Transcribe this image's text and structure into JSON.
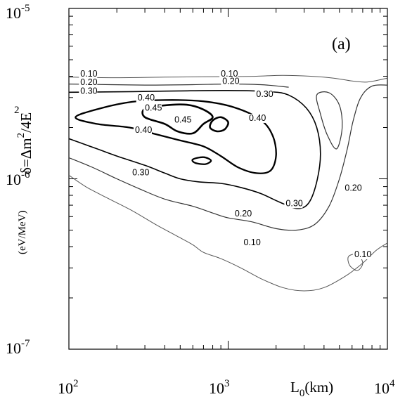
{
  "chart_data": {
    "type": "contour",
    "panel_label": "(a)",
    "xlabel": {
      "base": "L",
      "sub": "0",
      "rest": "(km)"
    },
    "ylabel": {
      "main": "δ=Δm",
      "sup": "2",
      "rest": "/4E",
      "unit": "(eV/MeV)",
      "unit_sup": "2"
    },
    "x_scale": "log",
    "y_scale": "log",
    "xlim": [
      100,
      10000
    ],
    "ylim": [
      1e-07,
      1e-05
    ],
    "x_ticks": [
      {
        "base": "10",
        "exp": "2"
      },
      {
        "base": "10",
        "exp": "3"
      },
      {
        "base": "10",
        "exp": "4"
      }
    ],
    "y_ticks": [
      {
        "base": "10",
        "exp": "-7"
      },
      {
        "base": "10",
        "exp": "-6"
      },
      {
        "base": "10",
        "exp": "-5"
      }
    ],
    "contour_levels": [
      "0.10",
      "0.20",
      "0.30",
      "0.40",
      "0.45"
    ],
    "contour_labels": [
      {
        "text": "0.10",
        "x": 118,
        "y": 3.98e-06
      },
      {
        "text": "0.20",
        "x": 118,
        "y": 3.55e-06
      },
      {
        "text": "0.30",
        "x": 118,
        "y": 3.16e-06
      },
      {
        "text": "0.10",
        "x": 900,
        "y": 3.98e-06
      },
      {
        "text": "0.20",
        "x": 920,
        "y": 3.6e-06
      },
      {
        "text": "0.30",
        "x": 1500,
        "y": 3.02e-06
      },
      {
        "text": "0.40",
        "x": 270,
        "y": 2.88e-06
      },
      {
        "text": "0.45",
        "x": 300,
        "y": 2.51e-06
      },
      {
        "text": "0.45",
        "x": 460,
        "y": 2.14e-06
      },
      {
        "text": "0.40",
        "x": 1350,
        "y": 2.19e-06
      },
      {
        "text": "0.40",
        "x": 260,
        "y": 1.86e-06
      },
      {
        "text": "0.30",
        "x": 250,
        "y": 1.05e-06
      },
      {
        "text": "0.30",
        "x": 2300,
        "y": 6.92e-07
      },
      {
        "text": "0.20",
        "x": 5400,
        "y": 8.5e-07
      },
      {
        "text": "0.20",
        "x": 1100,
        "y": 6.02e-07
      },
      {
        "text": "0.10",
        "x": 1250,
        "y": 4.07e-07
      },
      {
        "text": "0.10",
        "x": 6200,
        "y": 3.47e-07
      }
    ],
    "contours": [
      {
        "level": "0.10",
        "closed": false,
        "points": [
          [
            100,
            1.05e-06
          ],
          [
            130,
            8.9e-07
          ],
          [
            180,
            7.6e-07
          ],
          [
            250,
            6.5e-07
          ],
          [
            350,
            5.4e-07
          ],
          [
            480,
            4.6e-07
          ],
          [
            600,
            4.1e-07
          ],
          [
            700,
            3.7e-07
          ],
          [
            900,
            3.4e-07
          ],
          [
            1200,
            3e-07
          ],
          [
            1600,
            2.6e-07
          ],
          [
            2200,
            2.3e-07
          ],
          [
            3000,
            2.2e-07
          ],
          [
            4000,
            2.3e-07
          ],
          [
            5500,
            2.7e-07
          ],
          [
            7000,
            3.2e-07
          ],
          [
            8500,
            3.8e-07
          ],
          [
            10000,
            4.2e-07
          ]
        ]
      },
      {
        "level": "0.10",
        "closed": false,
        "points": [
          [
            100,
            3.95e-06
          ],
          [
            200,
            3.92e-06
          ],
          [
            400,
            3.95e-06
          ],
          [
            700,
            3.97e-06
          ],
          [
            1000,
            3.98e-06
          ],
          [
            1500,
            4e-06
          ],
          [
            2200,
            4.05e-06
          ],
          [
            3300,
            4e-06
          ],
          [
            4600,
            3.9e-06
          ],
          [
            6000,
            3.75e-06
          ],
          [
            7500,
            3.7e-06
          ],
          [
            10000,
            3.9e-06
          ]
        ]
      },
      {
        "level": "0.20",
        "closed": false,
        "points": [
          [
            100,
            1.33e-06
          ],
          [
            140,
            1.17e-06
          ],
          [
            200,
            1e-06
          ],
          [
            280,
            8.7e-07
          ],
          [
            400,
            7.6e-07
          ],
          [
            600,
            6.9e-07
          ],
          [
            800,
            6.3e-07
          ],
          [
            1000,
            5.9e-07
          ],
          [
            1400,
            5.6e-07
          ],
          [
            2000,
            5.1e-07
          ],
          [
            2700,
            5e-07
          ],
          [
            3500,
            5.4e-07
          ],
          [
            4300,
            6.9e-07
          ],
          [
            5000,
            1e-06
          ],
          [
            5600,
            1.5e-06
          ],
          [
            6100,
            2.2e-06
          ],
          [
            6800,
            3e-06
          ],
          [
            8000,
            3.5e-06
          ],
          [
            10000,
            3.55e-06
          ]
        ]
      },
      {
        "level": "0.20",
        "closed": false,
        "points": [
          [
            100,
            3.6e-06
          ],
          [
            300,
            3.55e-06
          ],
          [
            600,
            3.57e-06
          ],
          [
            1000,
            3.6e-06
          ],
          [
            1600,
            3.57e-06
          ],
          [
            2400,
            3.45e-06
          ]
        ]
      },
      {
        "level": "0.30",
        "closed": false,
        "points": [
          [
            100,
            1.72e-06
          ],
          [
            150,
            1.5e-06
          ],
          [
            200,
            1.36e-06
          ],
          [
            300,
            1.2e-06
          ],
          [
            400,
            1.08e-06
          ],
          [
            500,
            1e-06
          ],
          [
            650,
            9.6e-07
          ],
          [
            900,
            9.4e-07
          ],
          [
            1200,
            8.9e-07
          ],
          [
            1600,
            8.2e-07
          ],
          [
            2100,
            7.3e-07
          ],
          [
            2700,
            6.7e-07
          ],
          [
            3200,
            7.2e-07
          ],
          [
            3600,
            9.6e-07
          ],
          [
            3800,
            1.4e-06
          ],
          [
            3600,
            2e-06
          ],
          [
            3100,
            2.6e-06
          ],
          [
            2400,
            3.1e-06
          ],
          [
            1800,
            3.25e-06
          ],
          [
            1000,
            3.3e-06
          ],
          [
            500,
            3.28e-06
          ],
          [
            250,
            3.25e-06
          ],
          [
            100,
            3.22e-06
          ]
        ]
      },
      {
        "level": "0.40",
        "closed": true,
        "points": [
          [
            110,
            2.3e-06
          ],
          [
            160,
            2.6e-06
          ],
          [
            250,
            2.83e-06
          ],
          [
            400,
            2.9e-06
          ],
          [
            700,
            2.85e-06
          ],
          [
            1100,
            2.62e-06
          ],
          [
            1600,
            2.22e-06
          ],
          [
            1900,
            1.8e-06
          ],
          [
            2000,
            1.38e-06
          ],
          [
            1850,
            1.12e-06
          ],
          [
            1500,
            1.08e-06
          ],
          [
            1150,
            1.17e-06
          ],
          [
            900,
            1.36e-06
          ],
          [
            700,
            1.55e-06
          ],
          [
            500,
            1.68e-06
          ],
          [
            350,
            1.83e-06
          ],
          [
            240,
            2e-06
          ],
          [
            150,
            2.1e-06
          ]
        ]
      },
      {
        "level": "0.45",
        "closed": true,
        "points": [
          [
            300,
            2.58e-06
          ],
          [
            400,
            2.7e-06
          ],
          [
            550,
            2.72e-06
          ],
          [
            700,
            2.55e-06
          ],
          [
            800,
            2.3e-06
          ],
          [
            700,
            2.1e-06
          ],
          [
            600,
            1.85e-06
          ],
          [
            480,
            1.9e-06
          ],
          [
            400,
            2.1e-06
          ],
          [
            300,
            2.3e-06
          ]
        ]
      },
      {
        "level": "0.45",
        "closed": true,
        "points": [
          [
            800,
            2.2e-06
          ],
          [
            900,
            2.3e-06
          ],
          [
            1000,
            2.15e-06
          ],
          [
            950,
            1.95e-06
          ],
          [
            850,
            1.9e-06
          ],
          [
            770,
            2e-06
          ]
        ]
      },
      {
        "level": "0.40",
        "closed": true,
        "points": [
          [
            600,
            1.3e-06
          ],
          [
            700,
            1.34e-06
          ],
          [
            780,
            1.28e-06
          ],
          [
            720,
            1.22e-06
          ],
          [
            620,
            1.24e-06
          ]
        ]
      },
      {
        "level": "0.20",
        "closed": true,
        "points": [
          [
            3600,
            3.1e-06
          ],
          [
            4300,
            3.2e-06
          ],
          [
            5000,
            2.7e-06
          ],
          [
            5200,
            2e-06
          ],
          [
            4800,
            1.5e-06
          ],
          [
            4200,
            1.8e-06
          ],
          [
            3800,
            2.4e-06
          ]
        ]
      },
      {
        "level": "0.10",
        "closed": true,
        "points": [
          [
            5700,
            3.5e-07
          ],
          [
            6500,
            3.6e-07
          ],
          [
            7000,
            3.2e-07
          ],
          [
            6500,
            2.9e-07
          ],
          [
            5800,
            3.1e-07
          ]
        ]
      }
    ]
  }
}
